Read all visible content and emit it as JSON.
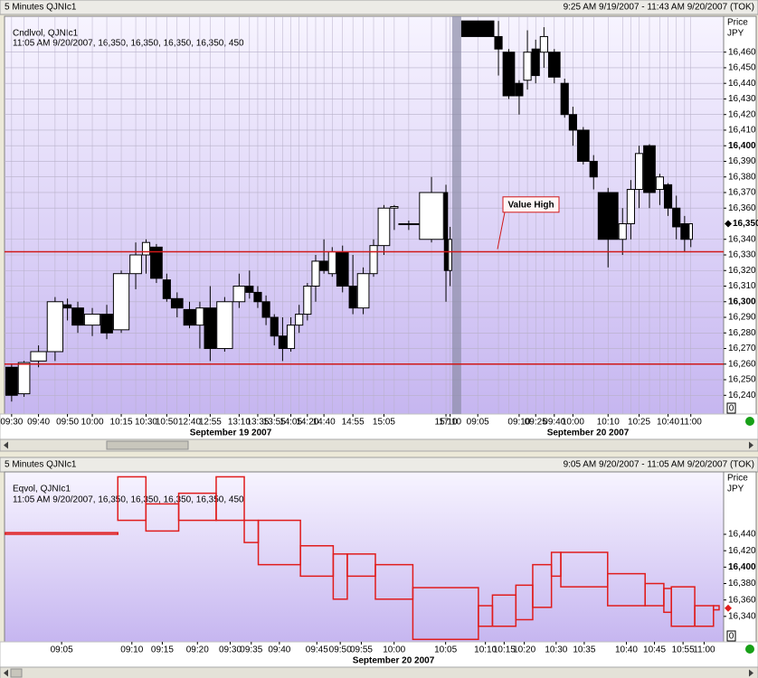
{
  "chart_data": [
    {
      "type": "candlevolume",
      "title": "5 Minutes QJNIc1",
      "range": "9:25 AM 9/19/2007 - 11:43 AM 9/20/2007 (TOK)",
      "legend": [
        "Cndlvol, QJNIc1",
        "11:05 AM 9/20/2007, 16,350, 16,350, 16,350, 16,350, 450"
      ],
      "y_label": "Price",
      "y_unit": "JPY",
      "date_labels": [
        "September 19 2007",
        "September 20 2007"
      ],
      "categories": [
        "09:30",
        null,
        "09:40",
        null,
        "09:50",
        null,
        "10:00",
        null,
        "10:15",
        null,
        "10:30",
        null,
        "10:50",
        null,
        "12:40",
        null,
        "12:55",
        null,
        "13:10",
        null,
        "13:35",
        null,
        "13:55",
        null,
        "14:05",
        null,
        "14:20",
        null,
        "14:40",
        null,
        null,
        "14:55",
        null,
        null,
        "15:05",
        null,
        null,
        null,
        "15:10",
        "17:10",
        "09:05",
        null,
        null,
        "09:10",
        null,
        "09:25",
        null,
        "09:40",
        null,
        "10:00",
        null,
        null,
        "10:10",
        null,
        null,
        "10:25",
        null,
        null,
        "10:40",
        null,
        null,
        "11:00"
      ],
      "open": [
        16258,
        16241,
        16262,
        16268,
        16298,
        16296,
        16285,
        16292,
        16282,
        16318,
        16330,
        16335,
        16314,
        16302,
        16295,
        16285,
        16296,
        16270,
        16300,
        16310,
        16306,
        16300,
        16290,
        16278,
        16270,
        16285,
        16292,
        16310,
        16326,
        16318,
        16332,
        16310,
        16296,
        16318,
        16336,
        16360,
        16350,
        16340,
        16370,
        16320,
        16480,
        16470,
        16460,
        16440,
        16442,
        16462,
        16460,
        16460,
        16440,
        16420,
        16410,
        16390,
        16370,
        16340,
        16350,
        16372,
        16400,
        16372,
        16375,
        16360,
        16350,
        16340
      ],
      "high": [
        16260,
        16262,
        16272,
        16303,
        16302,
        16300,
        16296,
        16298,
        16320,
        16338,
        16340,
        16337,
        16318,
        16306,
        16300,
        16300,
        16310,
        16303,
        16318,
        16320,
        16310,
        16304,
        16292,
        16290,
        16290,
        16298,
        16312,
        16330,
        16340,
        16335,
        16336,
        16330,
        16322,
        16340,
        16362,
        16362,
        16352,
        16380,
        16375,
        16348,
        16480,
        16480,
        16462,
        16442,
        16474,
        16468,
        16476,
        16462,
        16443,
        16425,
        16412,
        16394,
        16373,
        16360,
        16378,
        16400,
        16401,
        16382,
        16376,
        16368,
        16355,
        16350
      ],
      "low": [
        16236,
        16239,
        16258,
        16262,
        16288,
        16280,
        16278,
        16276,
        16280,
        16308,
        16318,
        16312,
        16300,
        16290,
        16283,
        16270,
        16262,
        16268,
        16296,
        16302,
        16296,
        16285,
        16272,
        16262,
        16268,
        16280,
        16288,
        16300,
        16318,
        16316,
        16306,
        16292,
        16292,
        16316,
        16330,
        16346,
        16346,
        16338,
        16300,
        16310,
        16470,
        16445,
        16430,
        16420,
        16436,
        16440,
        16450,
        16440,
        16418,
        16400,
        16388,
        16372,
        16322,
        16330,
        16340,
        16360,
        16360,
        16362,
        16355,
        16340,
        16332,
        16335
      ],
      "close": [
        16240,
        16261,
        16268,
        16300,
        16296,
        16285,
        16292,
        16280,
        16318,
        16330,
        16338,
        16315,
        16302,
        16296,
        16285,
        16296,
        16270,
        16300,
        16310,
        16306,
        16300,
        16290,
        16278,
        16270,
        16285,
        16292,
        16310,
        16326,
        16320,
        16332,
        16310,
        16296,
        16318,
        16336,
        16360,
        16361,
        16350,
        16370,
        16320,
        16340,
        16470,
        16462,
        16432,
        16432,
        16460,
        16445,
        16470,
        16444,
        16420,
        16410,
        16390,
        16380,
        16340,
        16350,
        16372,
        16395,
        16370,
        16380,
        16360,
        16348,
        16340,
        16350
      ],
      "volume": [
        3,
        3,
        4,
        4,
        2,
        3,
        4,
        3,
        4,
        3,
        2,
        3,
        2,
        3,
        3,
        2,
        3,
        4,
        3,
        2,
        2,
        2,
        2,
        2,
        2,
        2,
        2,
        2,
        2,
        2,
        3,
        2,
        3,
        2,
        3,
        2,
        5,
        6,
        1,
        1,
        8,
        2,
        3,
        2,
        2,
        2,
        2,
        3,
        2,
        2,
        3,
        2,
        5,
        2,
        2,
        2,
        3,
        2,
        2,
        2,
        2,
        1
      ],
      "up_color": "#ffffff",
      "down_color": "#000000",
      "ylim": [
        16228,
        16483
      ],
      "yticks": [
        {
          "value": 16240,
          "label": "16,240"
        },
        {
          "value": 16250,
          "label": "16,250"
        },
        {
          "value": 16260,
          "label": "16,260"
        },
        {
          "value": 16270,
          "label": "16,270"
        },
        {
          "value": 16280,
          "label": "16,280"
        },
        {
          "value": 16290,
          "label": "16,290"
        },
        {
          "value": 16300,
          "label": "16,300"
        },
        {
          "value": 16310,
          "label": "16,310"
        },
        {
          "value": 16320,
          "label": "16,320"
        },
        {
          "value": 16330,
          "label": "16,330"
        },
        {
          "value": 16340,
          "label": "16,340"
        },
        {
          "value": 16360,
          "label": "16,360"
        },
        {
          "value": 16370,
          "label": "16,370"
        },
        {
          "value": 16380,
          "label": "16,380"
        },
        {
          "value": 16390,
          "label": "16,390"
        },
        {
          "value": 16400,
          "label": "16,400"
        },
        {
          "value": 16410,
          "label": "16,410"
        },
        {
          "value": 16420,
          "label": "16,420"
        },
        {
          "value": 16430,
          "label": "16,430"
        },
        {
          "value": 16440,
          "label": "16,440"
        },
        {
          "value": 16450,
          "label": "16,450"
        },
        {
          "value": 16460,
          "label": "16,460"
        }
      ],
      "grid": true,
      "hlines": [
        {
          "value": 16332,
          "color": "#d01818"
        },
        {
          "value": 16260,
          "color": "#d01818"
        }
      ],
      "annotation": {
        "text": "Value High",
        "value": 16362,
        "color": "#d01818"
      },
      "last_price": {
        "value": 16350,
        "label": "16,350"
      },
      "volume_min": 0
    },
    {
      "type": "equivolume",
      "title": "5 Minutes QJNIc1",
      "range": "9:05 AM 9/20/2007 - 11:05 AM 9/20/2007 (TOK)",
      "legend": [
        "Eqvol, QJNIc1",
        "11:05 AM 9/20/2007, 16,350, 16,350, 16,350, 16,350, 450"
      ],
      "y_label": "Price",
      "y_unit": "JPY",
      "date_labels": [
        "September 20 2007"
      ],
      "categories": [
        "09:05",
        "09:10",
        "09:15",
        "09:20",
        "09:30",
        "09:35",
        "09:40",
        "09:45",
        "09:50",
        "09:55",
        "10:00",
        "10:05",
        "10:10",
        "10:15",
        "10:20",
        null,
        "10:30",
        "10:35",
        "10:40",
        "10:45",
        null,
        "10:55",
        "11:00",
        null
      ],
      "high": [
        16442,
        16510,
        16477,
        16490,
        16510,
        16457,
        16457,
        16426,
        16416,
        16416,
        16403,
        16375,
        16353,
        16366,
        16378,
        16403,
        16418,
        16418,
        16392,
        16380,
        16374,
        16376,
        16353,
        16353
      ],
      "low": [
        16440,
        16457,
        16444,
        16457,
        16457,
        16430,
        16403,
        16389,
        16361,
        16389,
        16361,
        16312,
        16328,
        16328,
        16336,
        16351,
        16389,
        16376,
        16353,
        16353,
        16345,
        16328,
        16328,
        16348
      ],
      "volume": [
        12,
        3,
        3.5,
        4,
        3,
        1.5,
        4.5,
        3.5,
        1.5,
        3,
        4,
        7,
        1.5,
        2.5,
        1.8,
        2,
        1,
        5,
        4,
        2,
        0.8,
        2.5,
        2,
        0.6
      ],
      "color": "#e01c1c",
      "ylim": [
        16309,
        16516
      ],
      "yticks": [
        {
          "value": 16340,
          "label": "16,340"
        },
        {
          "value": 16360,
          "label": "16,360"
        },
        {
          "value": 16380,
          "label": "16,380"
        },
        {
          "value": 16400,
          "label": "16,400"
        },
        {
          "value": 16420,
          "label": "16,420"
        },
        {
          "value": 16440,
          "label": "16,440"
        }
      ],
      "grid": false,
      "last_price": {
        "value": 16350
      },
      "volume_min": 0
    }
  ]
}
